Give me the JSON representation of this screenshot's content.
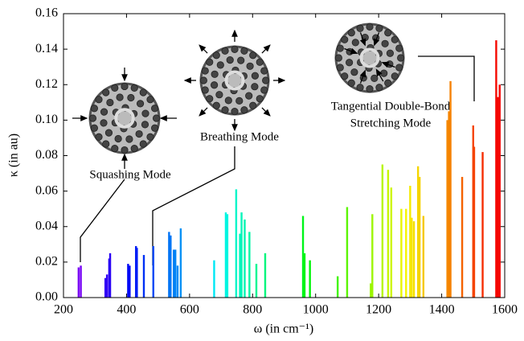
{
  "chart_data": {
    "type": "spectrum",
    "xlabel": "ω (in cm⁻¹)",
    "ylabel": "κ (in au)",
    "x": [
      248,
      255,
      333,
      338,
      345,
      348,
      405,
      410,
      430,
      433,
      455,
      485,
      535,
      540,
      550,
      555,
      562,
      572,
      678,
      715,
      720,
      748,
      760,
      765,
      775,
      790,
      812,
      840,
      960,
      965,
      982,
      1070,
      1100,
      1175,
      1180,
      1212,
      1230,
      1240,
      1272,
      1287,
      1300,
      1305,
      1312,
      1325,
      1330,
      1342,
      1418,
      1423,
      1428,
      1465,
      1500,
      1503,
      1530,
      1573,
      1578,
      1584
    ],
    "values": [
      0.017,
      0.018,
      0.011,
      0.013,
      0.022,
      0.025,
      0.019,
      0.018,
      0.029,
      0.028,
      0.024,
      0.029,
      0.037,
      0.035,
      0.027,
      0.027,
      0.018,
      0.039,
      0.021,
      0.048,
      0.047,
      0.061,
      0.036,
      0.048,
      0.044,
      0.037,
      0.019,
      0.025,
      0.046,
      0.025,
      0.021,
      0.012,
      0.051,
      0.008,
      0.047,
      0.075,
      0.072,
      0.062,
      0.05,
      0.05,
      0.063,
      0.045,
      0.043,
      0.074,
      0.068,
      0.046,
      0.1,
      0.105,
      0.122,
      0.068,
      0.097,
      0.085,
      0.082,
      0.145,
      0.113,
      0.12
    ],
    "colormap": "rainbow",
    "xlim": [
      200,
      1600
    ],
    "xticks": [
      200,
      400,
      600,
      800,
      1000,
      1200,
      1400,
      1600
    ],
    "ylim": [
      0,
      0.16
    ],
    "yticks": [
      {
        "value": 0,
        "label": "0.00"
      },
      {
        "value": 0.02,
        "label": "0.02"
      },
      {
        "value": 0.04,
        "label": "0.04"
      },
      {
        "value": 0.06,
        "label": "0.06"
      },
      {
        "value": 0.08,
        "label": "0.08"
      },
      {
        "value": 0.1,
        "label": "0.10"
      },
      {
        "value": 0.12,
        "label": "0.12"
      },
      {
        "value": 0.14,
        "label": "0.14"
      },
      {
        "value": 0.16,
        "label": "0.16"
      }
    ],
    "annotations": [
      "Squashing Mode",
      "Breathing Mode",
      "Tangential Double-Bond",
      "Stretching Mode"
    ]
  }
}
